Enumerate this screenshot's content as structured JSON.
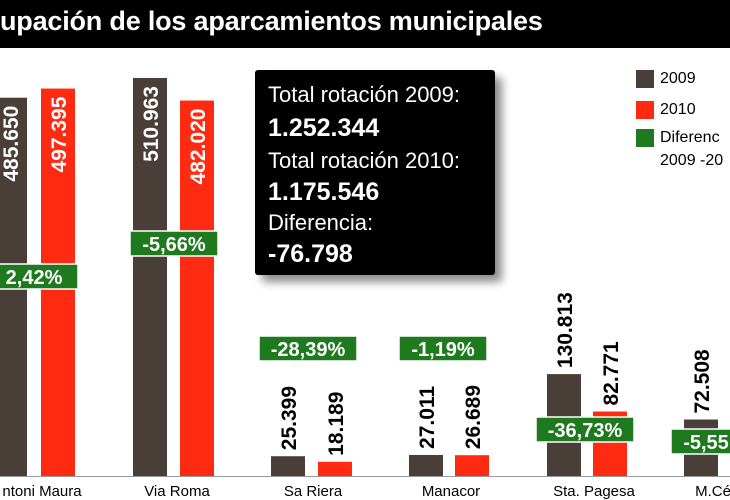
{
  "title": "upación de los aparcamientos municipales",
  "info_box": {
    "label_2009": "Total rotación 2009:",
    "value_2009": "1.252.344",
    "label_2010": "Total rotación 2010:",
    "value_2010": "1.175.546",
    "label_diff": "Diferencia:",
    "value_diff": "-76.798"
  },
  "legend": {
    "items": [
      {
        "label": "2009",
        "color": "#4a3f38"
      },
      {
        "label": "2010",
        "color": "#ff2a12"
      },
      {
        "label": "Diferenc",
        "label_line2": "2009 -20",
        "color": "#1f7a1f"
      }
    ]
  },
  "colors": {
    "title_bg": "#000000",
    "bar_2009": "#4a3f38",
    "bar_2010": "#ff2a12",
    "diff_badge": "#1f7a1f"
  },
  "chart_data": {
    "type": "bar",
    "title": "upación de los aparcamientos municipales",
    "categories": [
      "ntoni Maura",
      "Via Roma",
      "Sa Riera",
      "Manacor",
      "Sta. Pagesa",
      "M.Cé"
    ],
    "series": [
      {
        "name": "2009",
        "values": [
          485650,
          510963,
          25399,
          27011,
          130813,
          72508
        ],
        "labels": [
          "485.650",
          "510.963",
          "25.399",
          "27.011",
          "130.813",
          "72.508"
        ]
      },
      {
        "name": "2010",
        "values": [
          497395,
          482020,
          18189,
          26689,
          82771,
          null
        ],
        "labels": [
          "497.395",
          "482.020",
          "18.189",
          "26.689",
          "82.771",
          ""
        ]
      }
    ],
    "differences": [
      "2,42%",
      "-5,66%",
      "-28,39%",
      "-1,19%",
      "-36,73%",
      "-5,55"
    ],
    "ylim": [
      0,
      510963
    ],
    "grid": false,
    "legend_position": "top-right"
  }
}
